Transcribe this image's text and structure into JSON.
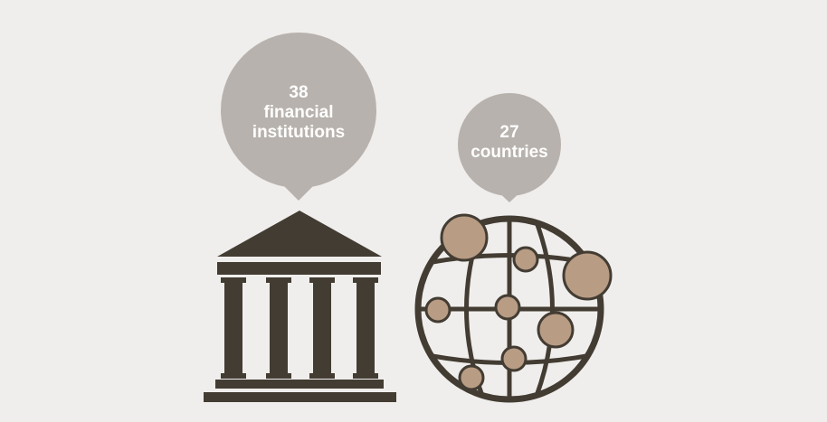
{
  "colors": {
    "background": "#f0eeec",
    "bubble": "#b7b2ad",
    "building": "#433c33",
    "globe": "#433c33",
    "dots": "#b89c84",
    "bubble_text": "#ffffff"
  },
  "icons": [
    "bank-building-icon",
    "globe-icon"
  ],
  "stat_institutions": {
    "number": "38",
    "line1": "financial",
    "line2": "institutions"
  },
  "stat_countries": {
    "number": "27",
    "line1": "countries"
  }
}
